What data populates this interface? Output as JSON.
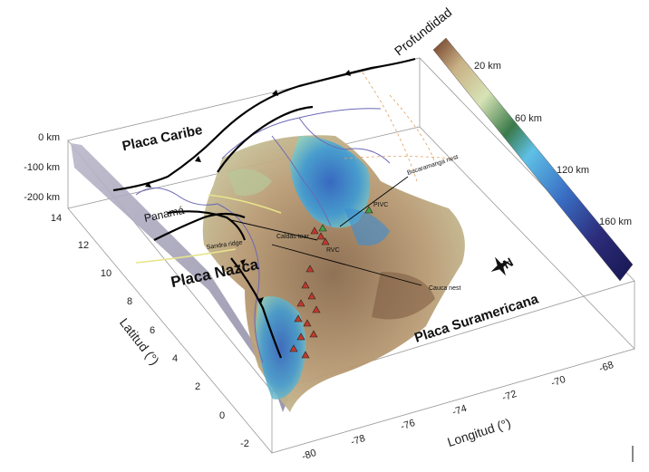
{
  "map": {
    "plates": {
      "caribe": "Placa Caribe",
      "nazca": "Placa Nazca",
      "suramericana": "Placa Suramericana"
    },
    "places": {
      "panama": "Panamá",
      "sandra_ridge": "Sandra ridge",
      "caldas_tear": "Caldas tear",
      "bucaramanga_nest": "Bucaramanga nest",
      "pivc": "PIVC",
      "rvc": "RVC",
      "cauca_nest": "Cauca nest"
    },
    "depth_axis": {
      "labels": [
        "0 km",
        "-100 km",
        "-200 km"
      ]
    },
    "latitude_axis": {
      "title": "Latitud (°)",
      "ticks": [
        "14",
        "12",
        "10",
        "8",
        "6",
        "4",
        "2",
        "0",
        "-2"
      ]
    },
    "longitude_axis": {
      "title": "Longitud (°)",
      "ticks": [
        "-80",
        "-78",
        "-76",
        "-74",
        "-72",
        "-70",
        "-68"
      ]
    },
    "colorbar": {
      "title": "Profundidad",
      "labels": [
        "20 km",
        "60 km",
        "120 km",
        "160 km"
      ],
      "colors": [
        "#6e3a24",
        "#c9b186",
        "#d7e3b5",
        "#3a7a4a",
        "#5fc0e6",
        "#3a6fc4",
        "#2c2c7a",
        "#171650"
      ]
    },
    "north_symbol": "N",
    "colors": {
      "trench": "#000000",
      "coast": "#6b68b6",
      "volcano_red": "#c0392b",
      "volcano_green": "#3fa14a",
      "ridge": "#e8e48c"
    }
  }
}
